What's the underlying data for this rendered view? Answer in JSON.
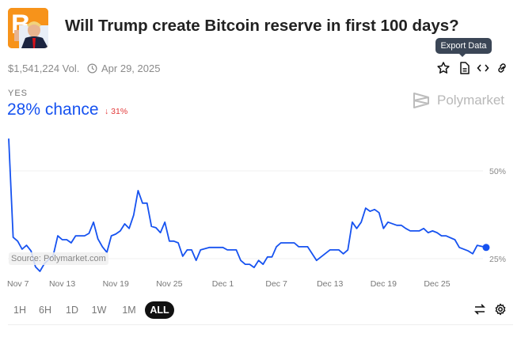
{
  "header": {
    "title": "Will Trump create Bitcoin reserve in first 100 days?",
    "volume": "$1,541,224 Vol.",
    "end_date": "Apr 29, 2025"
  },
  "actions": {
    "tooltip": "Export Data",
    "icons": [
      "star-icon",
      "document-icon",
      "code-icon",
      "link-icon"
    ]
  },
  "outcome": {
    "label": "YES",
    "chance": "28% chance",
    "change": "31%",
    "change_direction": "down"
  },
  "brand": {
    "name": "Polymarket"
  },
  "colors": {
    "line": "#1652f0",
    "down": "#e23939",
    "accent": "#1652f0"
  },
  "chart_data": {
    "type": "line",
    "source": "Source: Polymarket.com",
    "ylim": [
      20,
      60
    ],
    "yticks": [
      {
        "value": 50,
        "label": "50%"
      },
      {
        "value": 25,
        "label": "25%"
      }
    ],
    "xticks": [
      "Nov 7",
      "Nov 13",
      "Nov 19",
      "Nov 25",
      "Dec 1",
      "Dec 7",
      "Dec 13",
      "Dec 19",
      "Dec 25"
    ],
    "grid": true,
    "series": [
      {
        "points": [
          [
            "Nov 7 00:00",
            59.2
          ],
          [
            "Nov 7 12:00",
            31.1
          ],
          [
            "Nov 8 00:00",
            30
          ],
          [
            "Nov 8 12:00",
            27.7
          ],
          [
            "Nov 9 00:00",
            28.8
          ],
          [
            "Nov 9 12:00",
            27.2
          ],
          [
            "Nov 10 00:00",
            22.7
          ],
          [
            "Nov 10 12:00",
            21.4
          ],
          [
            "Nov 11 00:00",
            23.6
          ],
          [
            "Nov 12 00:00",
            26
          ],
          [
            "Nov 12 12:00",
            31.5
          ],
          [
            "Nov 13 00:00",
            30.4
          ],
          [
            "Nov 13 12:00",
            30.4
          ],
          [
            "Nov 14 00:00",
            29.5
          ],
          [
            "Nov 14 12:00",
            31.5
          ],
          [
            "Nov 15 12:00",
            31.5
          ],
          [
            "Nov 16 00:00",
            32.2
          ],
          [
            "Nov 16 12:00",
            35.4
          ],
          [
            "Nov 17 00:00",
            30.6
          ],
          [
            "Nov 17 12:00",
            28.4
          ],
          [
            "Nov 18 00:00",
            26.8
          ],
          [
            "Nov 18 12:00",
            31.5
          ],
          [
            "Nov 19 00:00",
            32
          ],
          [
            "Nov 19 12:00",
            32.9
          ],
          [
            "Nov 20 00:00",
            34.9
          ],
          [
            "Nov 20 12:00",
            33.6
          ],
          [
            "Nov 21 00:00",
            37.4
          ],
          [
            "Nov 21 12:00",
            44.4
          ],
          [
            "Nov 22 00:00",
            40.8
          ],
          [
            "Nov 22 12:00",
            40.8
          ],
          [
            "Nov 23 00:00",
            34.2
          ],
          [
            "Nov 23 12:00",
            33.8
          ],
          [
            "Nov 24 00:00",
            32.4
          ],
          [
            "Nov 24 12:00",
            35.4
          ],
          [
            "Nov 25 00:00",
            30
          ],
          [
            "Nov 25 12:00",
            30
          ],
          [
            "Nov 26 00:00",
            29.5
          ],
          [
            "Nov 26 12:00",
            25.7
          ],
          [
            "Nov 27 00:00",
            27.5
          ],
          [
            "Nov 27 12:00",
            27.5
          ],
          [
            "Nov 28 00:00",
            24.5
          ],
          [
            "Nov 28 12:00",
            27.5
          ],
          [
            "Nov 29 12:00",
            28.2
          ],
          [
            "Dec 1 00:00",
            28.2
          ],
          [
            "Dec 1 12:00",
            27.5
          ],
          [
            "Dec 2 12:00",
            27.5
          ],
          [
            "Dec 3 00:00",
            24.5
          ],
          [
            "Dec 3 12:00",
            23.4
          ],
          [
            "Dec 4 00:00",
            23.4
          ],
          [
            "Dec 4 12:00",
            22.5
          ],
          [
            "Dec 5 00:00",
            24.5
          ],
          [
            "Dec 5 12:00",
            23.4
          ],
          [
            "Dec 6 00:00",
            25.5
          ],
          [
            "Dec 6 12:00",
            25.5
          ],
          [
            "Dec 7 00:00",
            28.4
          ],
          [
            "Dec 7 12:00",
            29.5
          ],
          [
            "Dec 9 00:00",
            29.5
          ],
          [
            "Dec 9 12:00",
            28.4
          ],
          [
            "Dec 10 12:00",
            28.4
          ],
          [
            "Dec 11 12:00",
            24.5
          ],
          [
            "Dec 13 00:00",
            27.5
          ],
          [
            "Dec 14 00:00",
            27.5
          ],
          [
            "Dec 14 12:00",
            26.4
          ],
          [
            "Dec 15 00:00",
            27.5
          ],
          [
            "Dec 15 12:00",
            35.4
          ],
          [
            "Dec 16 00:00",
            33.6
          ],
          [
            "Dec 16 12:00",
            35.4
          ],
          [
            "Dec 17 00:00",
            39.4
          ],
          [
            "Dec 17 12:00",
            38.5
          ],
          [
            "Dec 18 00:00",
            39
          ],
          [
            "Dec 18 12:00",
            38.1
          ],
          [
            "Dec 19 00:00",
            33.6
          ],
          [
            "Dec 19 12:00",
            35.4
          ],
          [
            "Dec 20 12:00",
            34.5
          ],
          [
            "Dec 21 00:00",
            34.5
          ],
          [
            "Dec 21 12:00",
            33.6
          ],
          [
            "Dec 22 00:00",
            32.9
          ],
          [
            "Dec 23 00:00",
            32.9
          ],
          [
            "Dec 23 12:00",
            33.6
          ],
          [
            "Dec 24 00:00",
            32.4
          ],
          [
            "Dec 24 12:00",
            32.9
          ],
          [
            "Dec 25 00:00",
            32.4
          ],
          [
            "Dec 25 12:00",
            31.5
          ],
          [
            "Dec 26 00:00",
            31.5
          ],
          [
            "Dec 27 00:00",
            30.4
          ],
          [
            "Dec 27 12:00",
            28.2
          ],
          [
            "Dec 28 12:00",
            27.2
          ],
          [
            "Dec 29 00:00",
            26.4
          ],
          [
            "Dec 29 12:00",
            28.8
          ],
          [
            "Dec 30 12:00",
            28.2
          ]
        ]
      }
    ]
  },
  "timeranges": [
    {
      "label": "1H"
    },
    {
      "label": "6H"
    },
    {
      "label": "1D"
    },
    {
      "label": "1W"
    },
    {
      "label": "1M"
    },
    {
      "label": "ALL",
      "active": true
    }
  ]
}
